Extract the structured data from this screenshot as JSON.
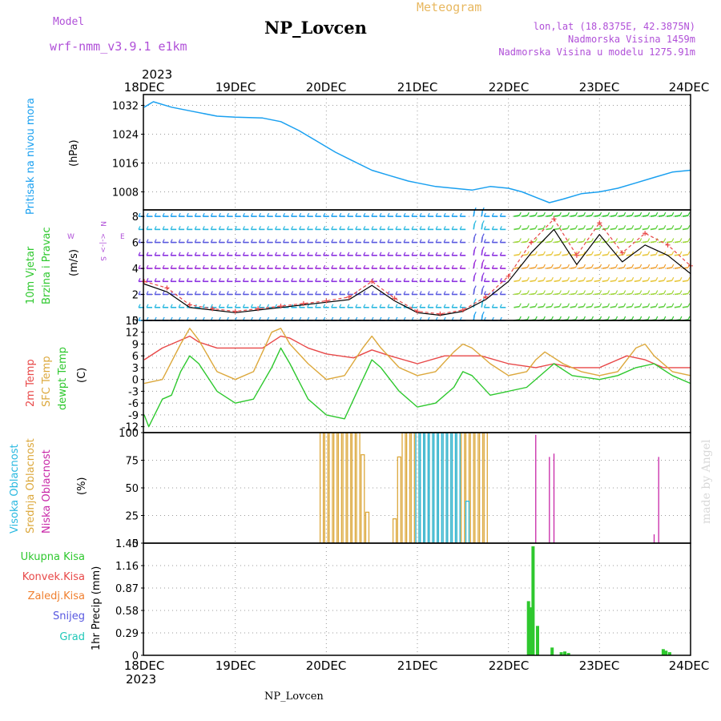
{
  "header": {
    "model_label": "Model",
    "model_name": "wrf-nmm_v3.9.1  e1km",
    "station": "NP_Lovcen",
    "meteogram": "Meteogram",
    "lonlat": "lon,lat (18.8375E, 42.3875N)",
    "elevation": "Nadmorska Visina 1459m",
    "elevation_model": "Nadmorska Visina u modelu 1275.91m",
    "year": "2023"
  },
  "footer": {
    "station": "NP_Lovcen",
    "year": "2023",
    "watermark": "made by Angel"
  },
  "x_ticks": [
    "18DEC",
    "19DEC",
    "20DEC",
    "21DEC",
    "22DEC",
    "23DEC",
    "24DEC"
  ],
  "colors": {
    "pressure": "#1aa0f0",
    "temp2m": "#e84848",
    "sfc": "#dca83c",
    "dewpt": "#2ec82e",
    "high_cloud": "#28b8e0",
    "mid_cloud": "#dca83c",
    "low_cloud": "#c828a8",
    "total_precip": "#2ec82e",
    "conv_precip": "#e84848",
    "frozen_precip": "#f08030",
    "snow": "#5858e0",
    "hail": "#20c8b8",
    "wind_speed": "#000000",
    "wind_gust": "#e84848"
  },
  "panels": {
    "pressure": {
      "label": "Pritisak na nivou mora",
      "unit": "(hPa)"
    },
    "wind": {
      "label1": "10m Vjetar",
      "label2": "Brzina i Pravac",
      "unit": "(m/s)",
      "compass_n": "N",
      "compass_s": "S",
      "compass_w": "W",
      "compass_e": "E",
      "compass_arrows": "<-|->"
    },
    "temp": {
      "label_2m": "2m Temp",
      "label_sfc": "SFC Temp",
      "label_dew": "dewpt Temp",
      "unit": "(C)"
    },
    "cloud": {
      "label_high": "Visoka Oblacnost",
      "label_mid": "Srednja Oblacnost",
      "label_low": "Niska Oblacnost",
      "unit": "(%)"
    },
    "precip": {
      "legend": [
        "Ukupna Kisa",
        "Konvek.Kisa",
        "Zaledj.Kisa",
        "Snijeg",
        "Grad"
      ],
      "axis_label": "1hr Precip (mm)"
    }
  },
  "chart_data": [
    {
      "type": "line",
      "title": "",
      "ylabel": "Pritisak na nivou mora (hPa)",
      "ylim": [
        1003,
        1035
      ],
      "yticks": [
        1008,
        1016,
        1024,
        1032
      ],
      "x_unit": "days since 18DEC 00",
      "series": [
        {
          "name": "Pritisak na nivou mora",
          "x": [
            0,
            0.1,
            0.3,
            0.5,
            0.8,
            1.0,
            1.3,
            1.5,
            1.7,
            1.9,
            2.1,
            2.3,
            2.5,
            2.7,
            2.9,
            3.0,
            3.2,
            3.4,
            3.6,
            3.8,
            4.0,
            4.15,
            4.3,
            4.45,
            4.6,
            4.8,
            5.0,
            5.2,
            5.4,
            5.6,
            5.8,
            6.0
          ],
          "values": [
            1031.5,
            1033,
            1031.5,
            1030.5,
            1029,
            1028.7,
            1028.5,
            1027.5,
            1025,
            1022,
            1019,
            1016.5,
            1014,
            1012.5,
            1011,
            1010.5,
            1009.5,
            1009,
            1008.5,
            1009.5,
            1009,
            1008,
            1006.5,
            1005,
            1006,
            1007.5,
            1008,
            1009,
            1010.5,
            1012,
            1013.5,
            1014
          ]
        }
      ]
    },
    {
      "type": "line",
      "title": "",
      "ylabel": "10m Vjetar Brzina i Pravac (m/s)",
      "ylim": [
        0,
        8.5
      ],
      "yticks": [
        0,
        2,
        4,
        6,
        8
      ],
      "x_unit": "days since 18DEC 00",
      "series": [
        {
          "name": "brzina",
          "x": [
            0,
            0.25,
            0.5,
            0.75,
            1.0,
            1.25,
            1.5,
            1.75,
            2.0,
            2.25,
            2.5,
            2.75,
            3.0,
            3.25,
            3.5,
            3.75,
            4.0,
            4.25,
            4.5,
            4.75,
            5.0,
            5.25,
            5.5,
            5.75,
            6.0
          ],
          "values": [
            2.8,
            2.2,
            1.0,
            0.8,
            0.6,
            0.8,
            1.0,
            1.2,
            1.4,
            1.6,
            2.7,
            1.5,
            0.6,
            0.4,
            0.7,
            1.6,
            3.0,
            5.2,
            7.0,
            4.3,
            6.6,
            4.5,
            5.8,
            5.0,
            3.6
          ]
        },
        {
          "name": "udar",
          "x": [
            0,
            0.25,
            0.5,
            0.75,
            1.0,
            1.25,
            1.5,
            1.75,
            2.0,
            2.25,
            2.5,
            2.75,
            3.0,
            3.25,
            3.5,
            3.75,
            4.0,
            4.25,
            4.5,
            4.75,
            5.0,
            5.25,
            5.5,
            5.75,
            6.0
          ],
          "values": [
            3.0,
            2.5,
            1.2,
            0.9,
            0.7,
            0.9,
            1.1,
            1.3,
            1.5,
            1.8,
            3.0,
            1.7,
            0.7,
            0.5,
            0.8,
            1.8,
            3.4,
            6.0,
            7.8,
            5.0,
            7.5,
            5.2,
            6.7,
            5.8,
            4.2
          ]
        }
      ]
    },
    {
      "type": "line",
      "title": "",
      "ylabel": "(C)",
      "ylim": [
        -13.5,
        15
      ],
      "yticks": [
        -12,
        -9,
        -6,
        -3,
        0,
        3,
        6,
        9,
        12,
        15
      ],
      "x_unit": "days since 18DEC 00",
      "series": [
        {
          "name": "2m Temp",
          "x": [
            0,
            0.2,
            0.4,
            0.5,
            0.6,
            0.8,
            1.0,
            1.3,
            1.5,
            1.6,
            1.8,
            2.0,
            2.3,
            2.5,
            2.7,
            3.0,
            3.3,
            3.5,
            3.7,
            4.0,
            4.3,
            4.5,
            4.7,
            5.0,
            5.3,
            5.5,
            5.7,
            6.0
          ],
          "values": [
            5,
            8,
            10,
            11,
            9.5,
            8,
            8,
            8,
            11,
            10.5,
            8,
            6.5,
            5.5,
            7.5,
            6,
            4,
            6,
            6,
            6,
            4,
            3,
            4,
            3,
            3,
            6,
            5,
            3,
            3
          ]
        },
        {
          "name": "SFC Temp",
          "x": [
            0,
            0.2,
            0.4,
            0.5,
            0.6,
            0.8,
            1.0,
            1.2,
            1.4,
            1.5,
            1.6,
            1.8,
            2.0,
            2.2,
            2.4,
            2.5,
            2.6,
            2.8,
            3.0,
            3.2,
            3.4,
            3.5,
            3.6,
            3.8,
            4.0,
            4.2,
            4.3,
            4.4,
            4.6,
            4.8,
            5.0,
            5.2,
            5.4,
            5.5,
            5.6,
            5.8,
            6.0
          ],
          "values": [
            -1,
            0,
            9,
            13,
            10,
            2,
            0,
            2,
            12,
            13,
            9,
            4,
            0,
            1,
            8,
            11,
            8,
            3,
            1,
            2,
            7,
            9,
            8,
            4,
            1,
            2,
            5,
            7,
            4,
            2,
            1,
            2,
            8,
            9,
            6,
            2,
            1
          ]
        },
        {
          "name": "dewpt Temp",
          "x": [
            0,
            0.05,
            0.2,
            0.3,
            0.4,
            0.5,
            0.6,
            0.8,
            1.0,
            1.2,
            1.4,
            1.5,
            1.6,
            1.8,
            2.0,
            2.2,
            2.4,
            2.5,
            2.6,
            2.8,
            3.0,
            3.2,
            3.4,
            3.5,
            3.6,
            3.8,
            4.0,
            4.2,
            4.4,
            4.5,
            4.7,
            5.0,
            5.2,
            5.4,
            5.6,
            5.8,
            6.0
          ],
          "values": [
            -9,
            -12,
            -5,
            -4,
            2,
            6,
            4,
            -3,
            -6,
            -5,
            3,
            8,
            4,
            -5,
            -9,
            -10,
            0,
            5,
            3,
            -3,
            -7,
            -6,
            -2,
            2,
            1,
            -4,
            -3,
            -2,
            2,
            4,
            1,
            0,
            1,
            3,
            4,
            1,
            -1
          ]
        }
      ]
    },
    {
      "type": "bar",
      "title": "",
      "ylabel": "(%)",
      "ylim": [
        0,
        100
      ],
      "yticks": [
        0,
        25,
        50,
        75,
        100
      ],
      "x_unit": "days since 18DEC 00",
      "series": [
        {
          "name": "Srednja Oblacnost",
          "x": [
            1.95,
            2.0,
            2.05,
            2.1,
            2.15,
            2.2,
            2.25,
            2.3,
            2.35,
            2.4,
            2.45,
            2.75,
            2.8,
            2.85,
            2.9,
            2.95,
            3.0,
            3.05,
            3.1,
            3.15,
            3.2,
            3.25,
            3.3,
            3.35,
            3.4,
            3.45,
            3.5,
            3.55,
            3.6,
            3.65,
            3.7,
            3.75
          ],
          "values": [
            100,
            100,
            100,
            100,
            100,
            100,
            100,
            100,
            100,
            80,
            28,
            22,
            78,
            100,
            100,
            100,
            100,
            100,
            100,
            100,
            100,
            100,
            100,
            100,
            100,
            100,
            100,
            100,
            100,
            100,
            100,
            100
          ]
        },
        {
          "name": "Visoka Oblacnost",
          "x": [
            3.0,
            3.05,
            3.1,
            3.15,
            3.2,
            3.25,
            3.3,
            3.35,
            3.4,
            3.45,
            3.55
          ],
          "values": [
            100,
            100,
            100,
            100,
            100,
            100,
            100,
            100,
            100,
            100,
            38
          ]
        },
        {
          "name": "Niska Oblacnost",
          "x": [
            4.3,
            4.45,
            4.5,
            5.6,
            5.65
          ],
          "values": [
            98,
            78,
            81,
            8,
            78
          ]
        }
      ]
    },
    {
      "type": "bar",
      "title": "",
      "ylabel": "1hr Precip (mm)",
      "ylim": [
        0,
        1.45
      ],
      "yticks": [
        0,
        0.29,
        0.58,
        0.87,
        1.16,
        1.45
      ],
      "x_unit": "days since 18DEC 00",
      "series": [
        {
          "name": "Ukupna Kisa",
          "x": [
            4.22,
            4.25,
            4.27,
            4.32,
            4.48,
            4.58,
            4.62,
            4.66,
            5.7,
            5.73,
            5.77
          ],
          "values": [
            0.7,
            0.62,
            1.41,
            0.38,
            0.1,
            0.04,
            0.05,
            0.03,
            0.08,
            0.06,
            0.04
          ]
        }
      ]
    }
  ]
}
